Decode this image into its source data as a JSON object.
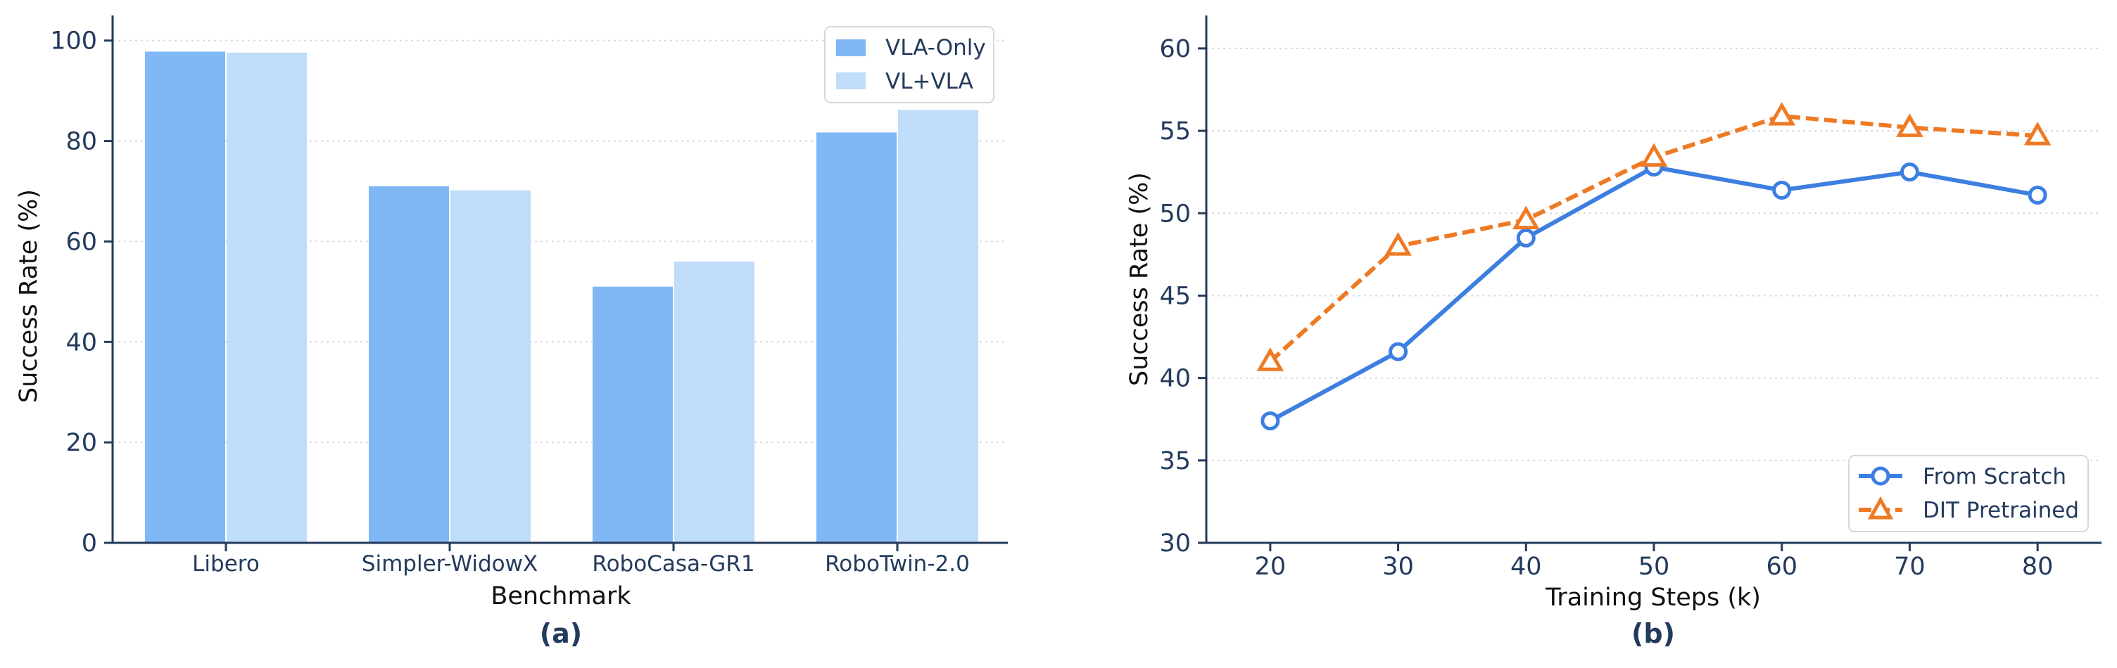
{
  "chart_data": [
    {
      "type": "bar",
      "panel_label": "(a)",
      "xlabel": "Benchmark",
      "ylabel": "Success Rate (%)",
      "categories": [
        "Libero",
        "Simpler-WidowX",
        "RoboCasa-GR1",
        "RoboTwin-2.0"
      ],
      "series": [
        {
          "name": "VLA-Only",
          "values": [
            97.8,
            71.0,
            51.0,
            81.7
          ],
          "color": "#7fb8f5"
        },
        {
          "name": "VL+VLA",
          "values": [
            97.6,
            70.2,
            56.0,
            86.2
          ],
          "color": "#c0dcfb"
        }
      ],
      "ylim": [
        0,
        105
      ],
      "yticks": [
        0,
        20,
        40,
        60,
        80,
        100
      ],
      "grid": "horizontal-dotted",
      "legend": "top-right"
    },
    {
      "type": "line",
      "panel_label": "(b)",
      "xlabel": "Training Steps (k)",
      "ylabel": "Success Rate (%)",
      "x": [
        20,
        30,
        40,
        50,
        60,
        70,
        80
      ],
      "series": [
        {
          "name": "From Scratch",
          "values": [
            37.4,
            41.6,
            48.5,
            52.8,
            51.4,
            52.5,
            51.1
          ],
          "color": "#3d7fe0",
          "marker": "circle",
          "line": "solid"
        },
        {
          "name": "DIT Pretrained",
          "values": [
            41.0,
            48.0,
            49.6,
            53.4,
            55.9,
            55.2,
            54.7
          ],
          "color": "#ef7a24",
          "marker": "triangle",
          "line": "dashed"
        }
      ],
      "xlim": [
        15,
        85
      ],
      "ylim": [
        30,
        62
      ],
      "xticks": [
        20,
        30,
        40,
        50,
        60,
        70,
        80
      ],
      "yticks": [
        30,
        35,
        40,
        45,
        50,
        55,
        60
      ],
      "grid": "horizontal-dotted",
      "legend": "bottom-right"
    }
  ]
}
